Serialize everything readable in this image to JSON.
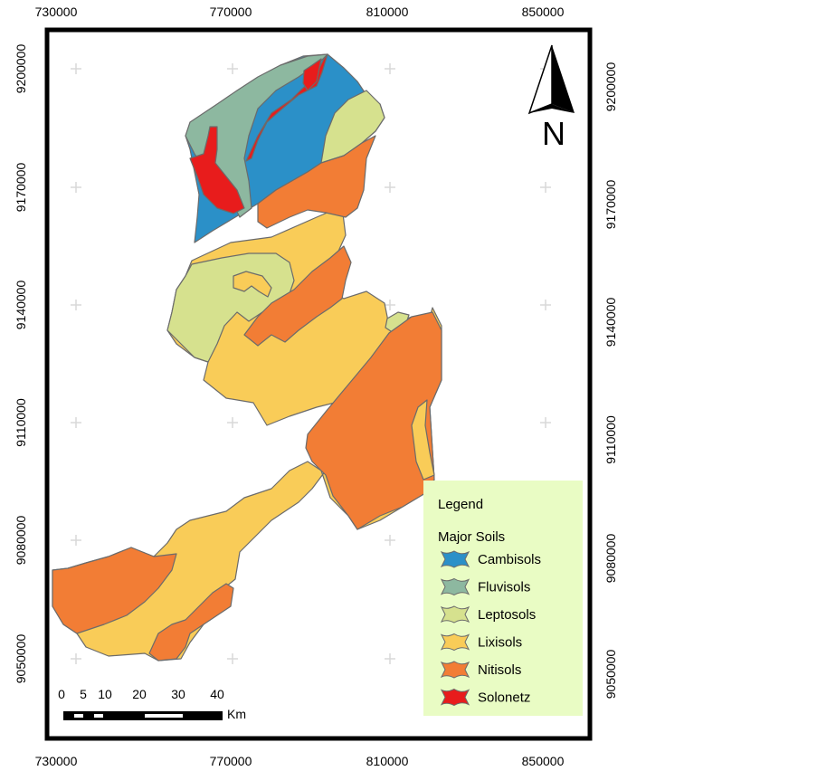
{
  "map": {
    "x_ticks": [
      "730000",
      "770000",
      "810000",
      "850000"
    ],
    "y_ticks": [
      "9200000",
      "9170000",
      "9140000",
      "9110000",
      "9080000",
      "9050000"
    ],
    "north_label": "N"
  },
  "legend": {
    "title": "Legend",
    "subtitle": "Major Soils",
    "items": [
      {
        "label": "Cambisols",
        "color": "#2b90c8"
      },
      {
        "label": "Fluvisols",
        "color": "#8db8a0"
      },
      {
        "label": "Leptosols",
        "color": "#d6e18e"
      },
      {
        "label": "Lixisols",
        "color": "#f9cc58"
      },
      {
        "label": "Nitisols",
        "color": "#f27d35"
      },
      {
        "label": "Solonetz",
        "color": "#e81c1c"
      }
    ],
    "background": "#e9fcc4"
  },
  "scale_bar": {
    "labels": [
      "0",
      "5",
      "10",
      "20",
      "30",
      "40"
    ],
    "unit": "Km"
  }
}
